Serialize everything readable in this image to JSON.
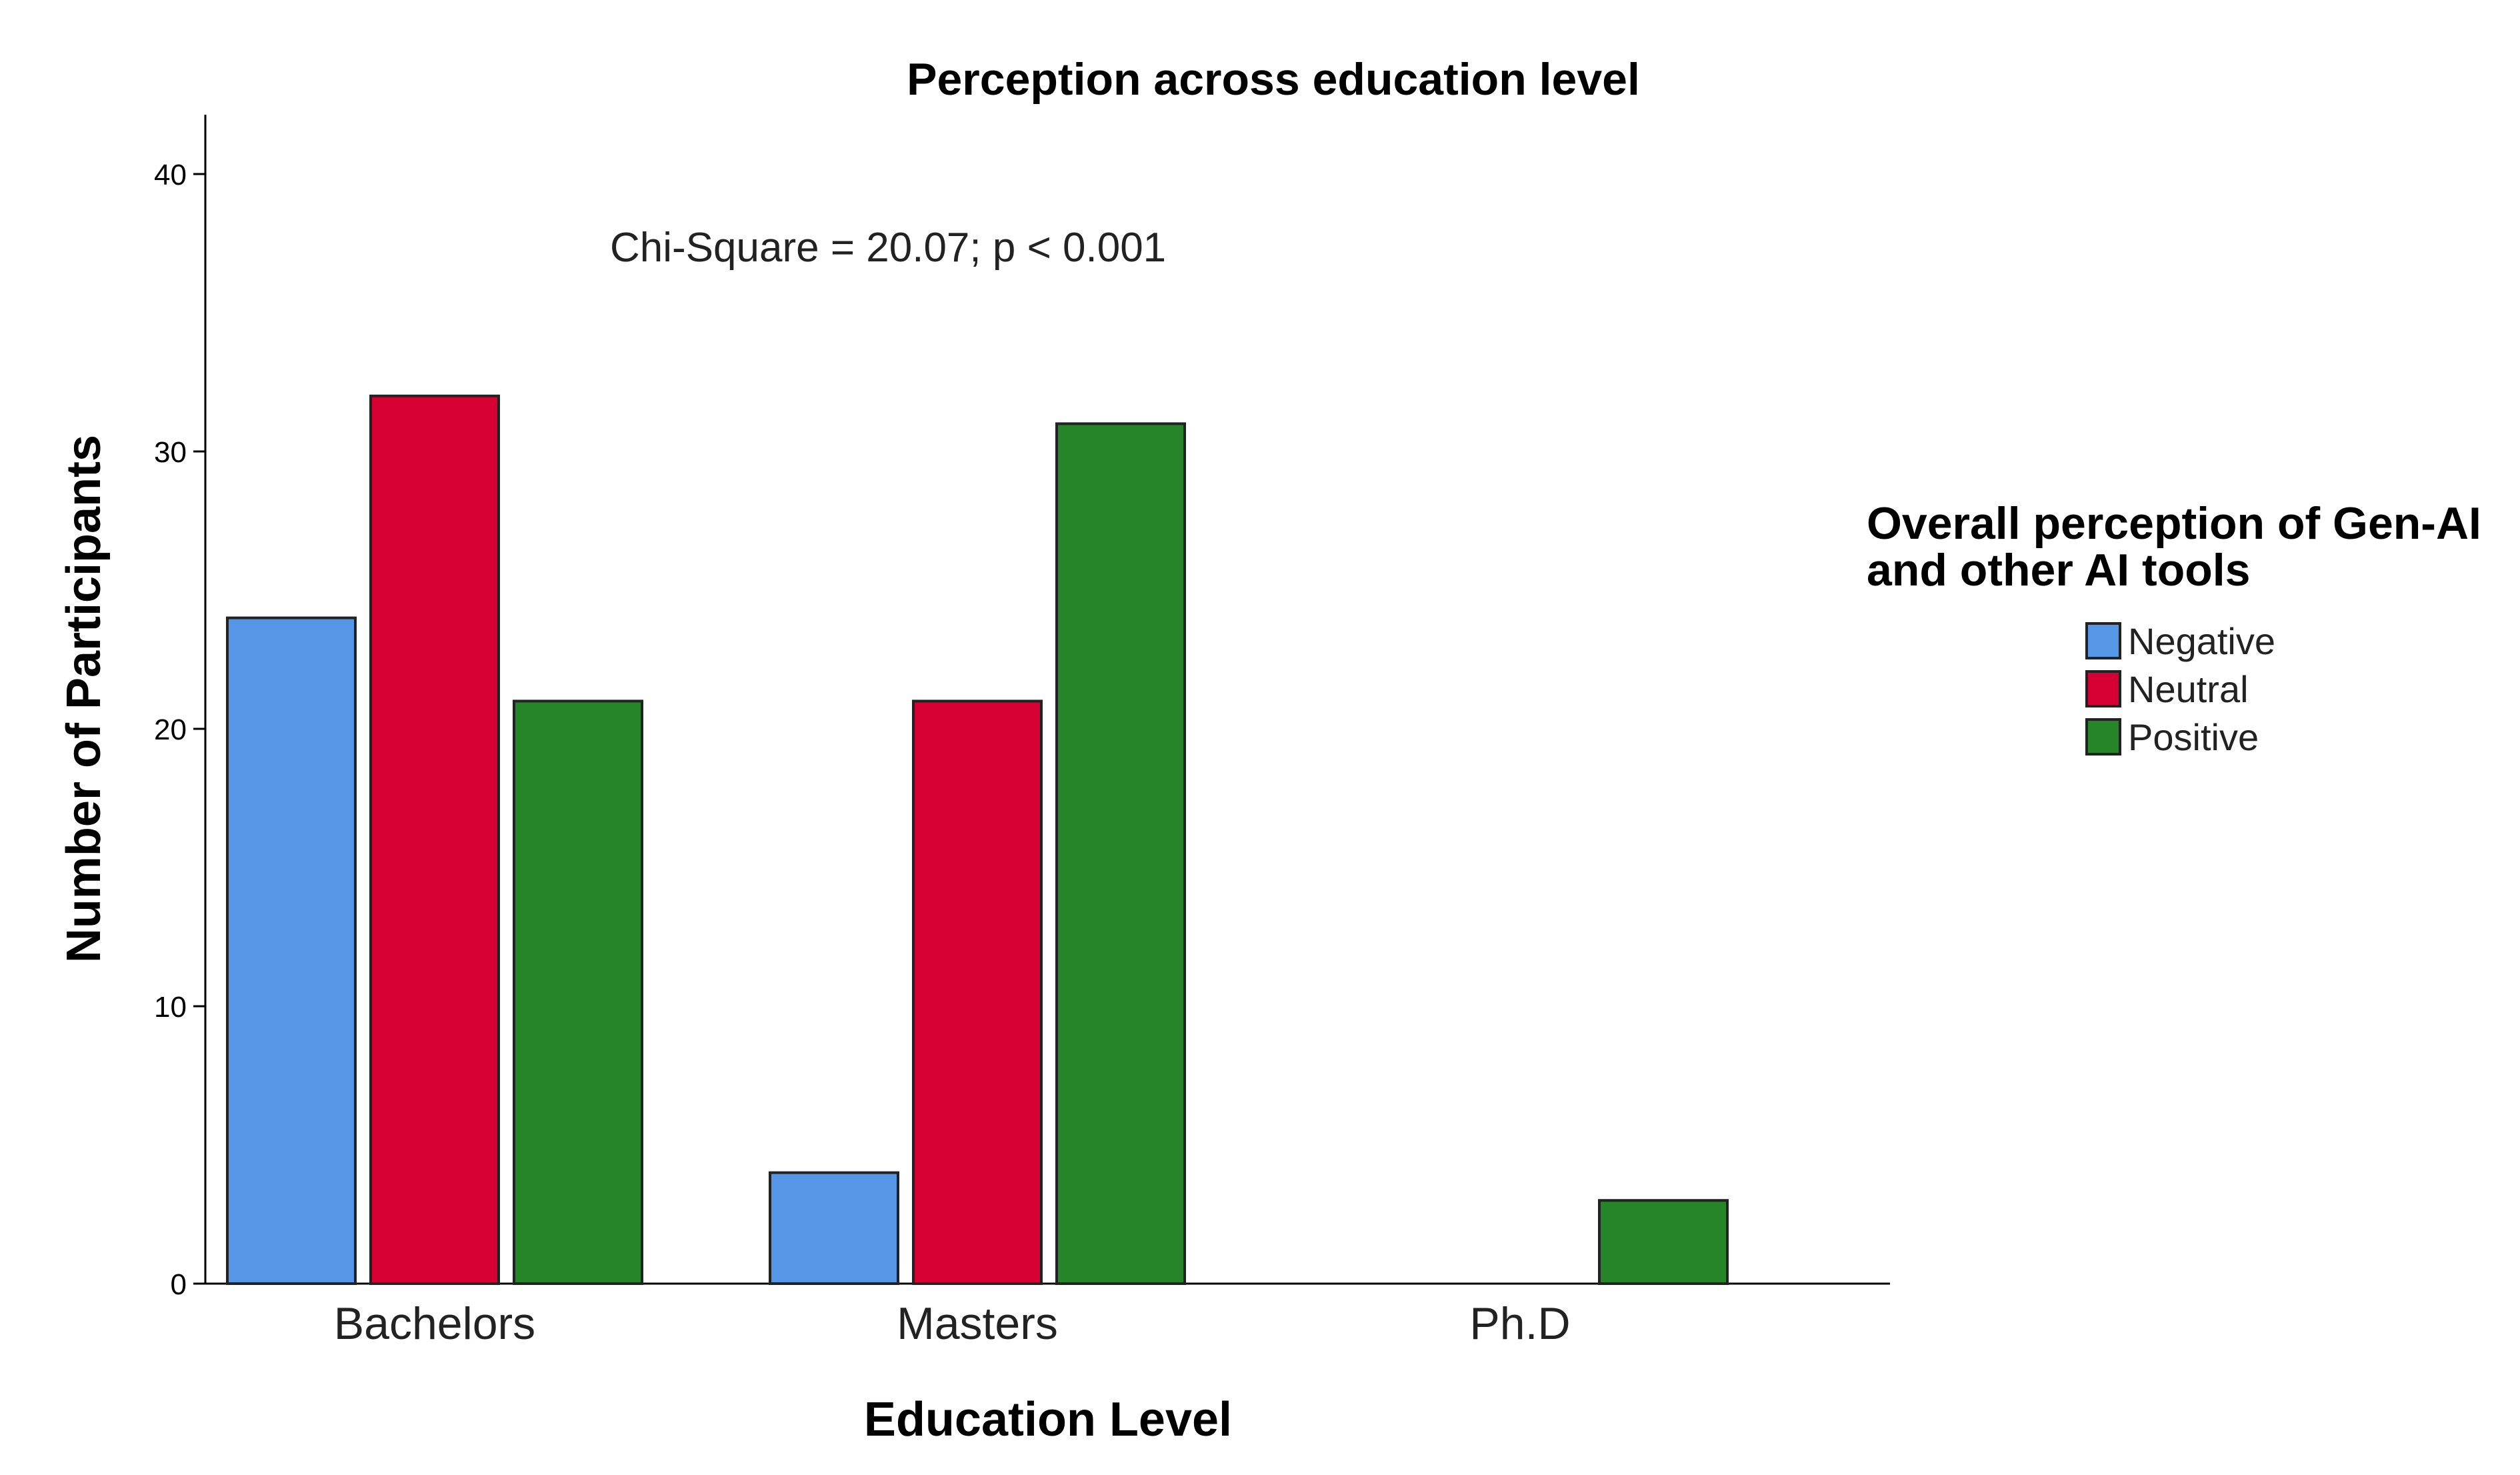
{
  "chart_data": {
    "type": "bar",
    "title": "Perception across education level",
    "xlabel": "Education Level",
    "ylabel": "Number of Participants",
    "categories": [
      "Bachelors",
      "Masters",
      "Ph.D"
    ],
    "series": [
      {
        "name": "Negative",
        "color": "#5596e6",
        "values": [
          24,
          4,
          0
        ]
      },
      {
        "name": "Neutral",
        "color": "#d60032",
        "values": [
          32,
          21,
          0
        ]
      },
      {
        "name": "Positive",
        "color": "#268529",
        "values": [
          21,
          31,
          3
        ]
      }
    ],
    "ylim": [
      0,
      40
    ],
    "yticks": [
      "0",
      "10",
      "20",
      "30",
      "40"
    ],
    "annotation": "Chi-Square = 20.07; p < 0.001",
    "legend": {
      "title_lines": [
        "Overall perception of Gen-AI",
        "and other AI tools"
      ],
      "position": "right"
    },
    "grid": false
  }
}
